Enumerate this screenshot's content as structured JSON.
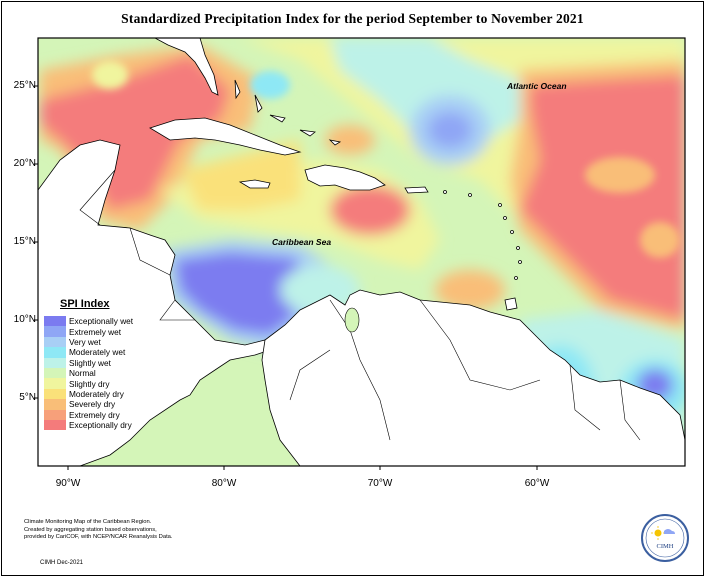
{
  "title": "Standardized Precipitation Index for the period September to November 2021",
  "latitude_labels": [
    "25°N",
    "20°N",
    "15°N",
    "10°N",
    "5°N"
  ],
  "longitude_labels": [
    "90°W",
    "80°W",
    "70°W",
    "60°W"
  ],
  "ocean_labels": {
    "atlantic": "Atlantic Ocean",
    "caribbean": "Caribbean Sea"
  },
  "legend": {
    "title": "SPI Index",
    "items": [
      {
        "label": "Exceptionally wet",
        "color": "#7b7bf0"
      },
      {
        "label": "Extremely wet",
        "color": "#8fa6f5"
      },
      {
        "label": "Very wet",
        "color": "#a8cff5"
      },
      {
        "label": "Moderately wet",
        "color": "#8ee8f5"
      },
      {
        "label": "Slightly wet",
        "color": "#bdf2e8"
      },
      {
        "label": "Normal",
        "color": "#d4f5b8"
      },
      {
        "label": "Slightly dry",
        "color": "#f0f59e"
      },
      {
        "label": "Moderately dry",
        "color": "#fae17a"
      },
      {
        "label": "Severely dry",
        "color": "#f9be78"
      },
      {
        "label": "Extremely dry",
        "color": "#f7a07a"
      },
      {
        "label": "Exceptionally dry",
        "color": "#f47b7b"
      }
    ]
  },
  "credits": {
    "line1": "Climate Monitoring Map of the Caribbean Region.",
    "line2": "Created by aggregating station based observations,",
    "line3": "provided by CariCOF, with NCEP/NCAR Reanalysis Data.",
    "date": "CIMH Dec-2021"
  },
  "logo_text": "CIMH",
  "colors": {
    "land": "#ffffff",
    "coast": "#000000",
    "frame": "#000000"
  }
}
